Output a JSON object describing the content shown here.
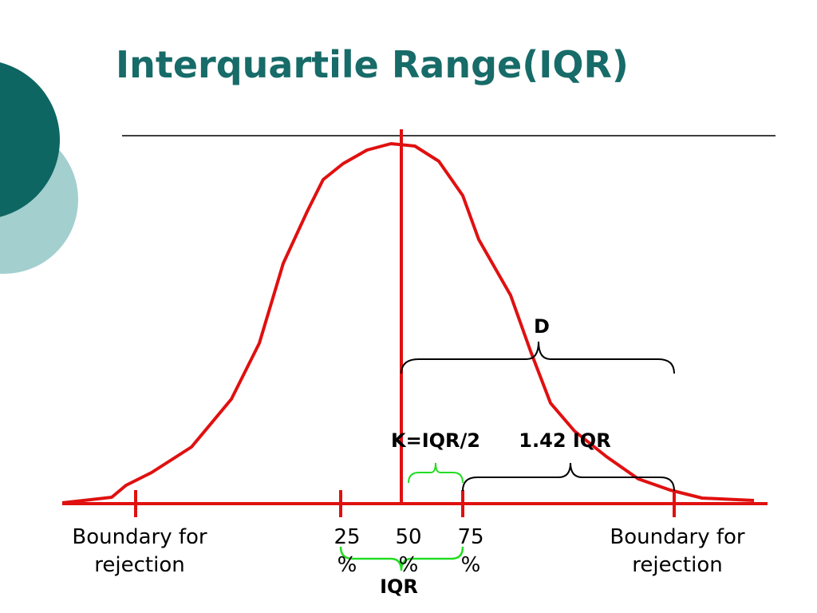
{
  "title": "Interquartile Range(IQR)",
  "labels": {
    "d": "D",
    "k": "K=IQR/2",
    "multiple": "1.42 IQR",
    "iqr": "IQR"
  },
  "axis_labels": [
    {
      "lines": [
        "Boundary for",
        "rejection"
      ]
    },
    {
      "lines": [
        "25",
        "%"
      ]
    },
    {
      "lines": [
        "50",
        "%"
      ]
    },
    {
      "lines": [
        "75",
        "%"
      ]
    },
    {
      "lines": [
        "Boundary for",
        "rejection"
      ]
    }
  ]
}
